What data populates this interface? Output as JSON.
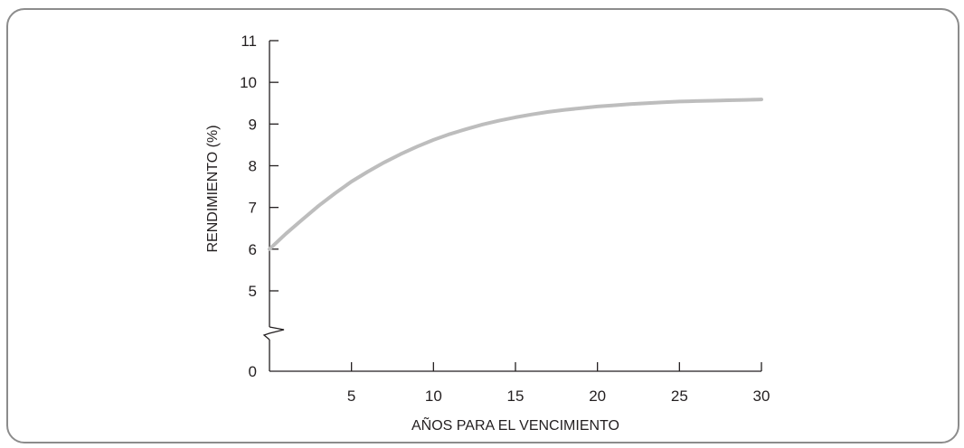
{
  "chart_data": {
    "type": "line",
    "title": "",
    "xlabel": "AÑOS PARA EL VENCIMIENTO",
    "ylabel": "RENDIMIENTO (%)",
    "xlim": [
      0,
      30
    ],
    "ylim": [
      0,
      11
    ],
    "x_ticks": [
      5,
      10,
      15,
      20,
      25,
      30
    ],
    "y_ticks": [
      0,
      5,
      6,
      7,
      8,
      9,
      10,
      11
    ],
    "axis_break": true,
    "grid": false,
    "line_color": "#bdbdbd",
    "x": [
      0,
      1,
      2,
      3,
      4,
      5,
      6,
      7,
      8,
      9,
      10,
      11,
      12,
      13,
      14,
      15,
      16,
      17,
      18,
      19,
      20,
      21,
      22,
      23,
      24,
      25,
      26,
      27,
      28,
      29,
      30
    ],
    "y": [
      6.0,
      6.37,
      6.71,
      7.04,
      7.34,
      7.62,
      7.86,
      8.08,
      8.28,
      8.46,
      8.62,
      8.76,
      8.88,
      8.99,
      9.08,
      9.16,
      9.23,
      9.29,
      9.34,
      9.38,
      9.42,
      9.45,
      9.48,
      9.5,
      9.52,
      9.54,
      9.55,
      9.56,
      9.57,
      9.58,
      9.59
    ]
  }
}
